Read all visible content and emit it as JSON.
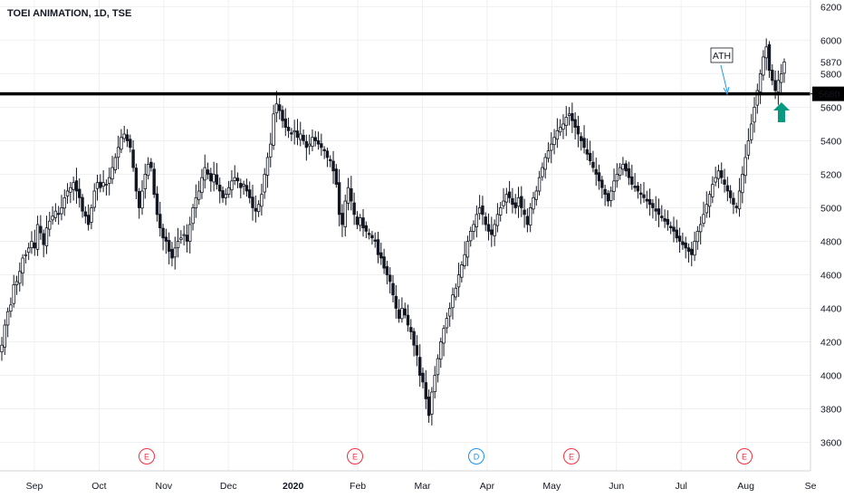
{
  "header": {
    "symbol_title": "TOEI ANIMATION, 1D, TSE"
  },
  "chart_data": {
    "type": "candlestick",
    "title": "TOEI ANIMATION, 1D, TSE",
    "x_ticks": [
      "Sep",
      "Oct",
      "Nov",
      "Dec",
      "2020",
      "Feb",
      "Mar",
      "Apr",
      "May",
      "Jun",
      "Jul",
      "Aug",
      "Se"
    ],
    "y_ticks": [
      3600,
      3800,
      4000,
      4200,
      4400,
      4600,
      4800,
      5000,
      5200,
      5400,
      5600,
      5800,
      6000,
      6200
    ],
    "ylim": [
      3430,
      6240
    ],
    "horizontal_line": {
      "value": 5680,
      "label": "5680",
      "color": "#000000"
    },
    "last_price": {
      "value": 5870,
      "label": "5870"
    },
    "annotation": {
      "text": "ATH",
      "arrow_color": "#2196f3"
    },
    "marker_arrow": {
      "direction": "up",
      "color": "#089981"
    },
    "events": [
      {
        "label": "E",
        "near": "Oct-Nov",
        "color": "#f23645"
      },
      {
        "label": "E",
        "near": "Feb",
        "color": "#f23645"
      },
      {
        "label": "D",
        "near": "Apr",
        "color": "#2196f3"
      },
      {
        "label": "E",
        "near": "May",
        "color": "#f23645"
      },
      {
        "label": "E",
        "near": "Aug",
        "color": "#f23645"
      }
    ],
    "candle_color": "#131722",
    "closes": [
      4180,
      4300,
      4380,
      4420,
      4540,
      4560,
      4620,
      4700,
      4720,
      4760,
      4800,
      4760,
      4900,
      4850,
      4780,
      4880,
      4920,
      4950,
      4980,
      4960,
      5000,
      5060,
      5100,
      5120,
      5150,
      5100,
      5060,
      4980,
      4950,
      4900,
      5000,
      5100,
      5150,
      5120,
      5150,
      5140,
      5180,
      5240,
      5300,
      5360,
      5420,
      5440,
      5400,
      5360,
      5240,
      5100,
      5000,
      5100,
      5200,
      5260,
      5240,
      5080,
      4960,
      4880,
      4820,
      4800,
      4740,
      4700,
      4760,
      4800,
      4820,
      4840,
      4800,
      4900,
      5000,
      5060,
      5100,
      5180,
      5240,
      5200,
      5160,
      5200,
      5140,
      5100,
      5060,
      5080,
      5120,
      5160,
      5180,
      5160,
      5120,
      5140,
      5100,
      5060,
      5000,
      4980,
      5020,
      5080,
      5200,
      5300,
      5380,
      5560,
      5620,
      5580,
      5520,
      5480,
      5460,
      5440,
      5460,
      5420,
      5440,
      5400,
      5360,
      5380,
      5420,
      5400,
      5380,
      5360,
      5340,
      5300,
      5280,
      5220,
      5140,
      4960,
      4900,
      5040,
      5120,
      5040,
      4960,
      4900,
      4940,
      4880,
      4860,
      4840,
      4820,
      4800,
      4720,
      4700,
      4640,
      4600,
      4560,
      4480,
      4400,
      4340,
      4400,
      4360,
      4300,
      4260,
      4180,
      4120,
      4000,
      3960,
      3860,
      3760,
      3900,
      4000,
      4100,
      4200,
      4280,
      4340,
      4400,
      4480,
      4520,
      4600,
      4660,
      4720,
      4800,
      4860,
      4900,
      4960,
      5000,
      4960,
      4900,
      4860,
      4840,
      4900,
      4960,
      5000,
      5040,
      5080,
      5060,
      5020,
      5000,
      5060,
      5000,
      4960,
      4900,
      5000,
      5060,
      5100,
      5180,
      5240,
      5300,
      5340,
      5380,
      5420,
      5460,
      5480,
      5500,
      5540,
      5560,
      5520,
      5480,
      5440,
      5400,
      5360,
      5320,
      5280,
      5240,
      5200,
      5160,
      5120,
      5080,
      5040,
      5100,
      5160,
      5200,
      5240,
      5260,
      5220,
      5180,
      5140,
      5120,
      5100,
      5080,
      5060,
      5040,
      5020,
      5000,
      4980,
      4960,
      4940,
      4920,
      4900,
      4880,
      4860,
      4820,
      4800,
      4780,
      4760,
      4740,
      4720,
      4800,
      4860,
      4900,
      4960,
      5020,
      5080,
      5140,
      5180,
      5220,
      5180,
      5140,
      5100,
      5060,
      5020,
      5000,
      5100,
      5200,
      5300,
      5400,
      5500,
      5600,
      5700,
      5800,
      5900,
      5960,
      5820,
      5760,
      5700,
      5760,
      5800,
      5870
    ]
  }
}
